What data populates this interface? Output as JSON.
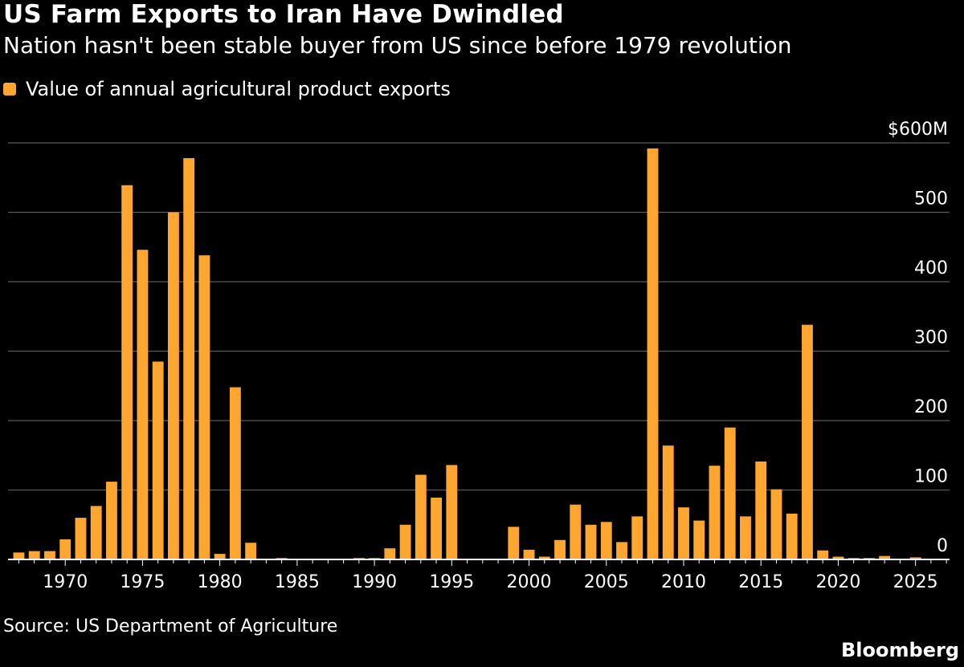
{
  "header": {
    "title": "US Farm Exports to Iran Have Dwindled",
    "subtitle": "Nation hasn't been stable buyer from US since before 1979 revolution"
  },
  "legend": {
    "label": "Value of annual agricultural product exports"
  },
  "footer": {
    "source": "Source: US Department of Agriculture",
    "brand": "Bloomberg"
  },
  "colors": {
    "bar": "#ffa630",
    "grid": "#5a5a5a",
    "axis": "#ffffff",
    "background": "#000000",
    "text": "#ffffff"
  },
  "chart_data": {
    "type": "bar",
    "series": [
      {
        "name": "Value of annual agricultural product exports",
        "x": [
          1967,
          1968,
          1969,
          1970,
          1971,
          1972,
          1973,
          1974,
          1975,
          1976,
          1977,
          1978,
          1979,
          1980,
          1981,
          1982,
          1983,
          1984,
          1985,
          1986,
          1987,
          1988,
          1989,
          1990,
          1991,
          1992,
          1993,
          1994,
          1995,
          1996,
          1997,
          1998,
          1999,
          2000,
          2001,
          2002,
          2003,
          2004,
          2005,
          2006,
          2007,
          2008,
          2009,
          2010,
          2011,
          2012,
          2013,
          2014,
          2015,
          2016,
          2017,
          2018,
          2019,
          2020,
          2021,
          2022,
          2023,
          2024,
          2025
        ],
        "values": [
          10,
          12,
          12,
          29,
          60,
          77,
          112,
          539,
          446,
          285,
          500,
          578,
          438,
          8,
          248,
          24,
          0,
          2,
          0,
          0,
          0,
          0,
          2,
          2,
          16,
          50,
          122,
          89,
          136,
          0,
          0,
          0,
          47,
          14,
          4,
          28,
          79,
          50,
          54,
          25,
          62,
          592,
          164,
          75,
          56,
          135,
          190,
          62,
          141,
          101,
          66,
          338,
          13,
          4,
          2,
          2,
          5,
          0,
          3
        ]
      }
    ],
    "xticks": [
      1970,
      1975,
      1980,
      1985,
      1990,
      1995,
      2000,
      2005,
      2010,
      2015,
      2020,
      2025
    ],
    "yticks": [
      0,
      100,
      200,
      300,
      400,
      500,
      600
    ],
    "ytick_labels": [
      "0",
      "100",
      "200",
      "300",
      "400",
      "500",
      "$600M"
    ],
    "xlim": [
      1966.3,
      2027.2
    ],
    "ylim": [
      0,
      600
    ],
    "grid": true,
    "y_axis_side": "right",
    "legend_position": "top-left"
  }
}
